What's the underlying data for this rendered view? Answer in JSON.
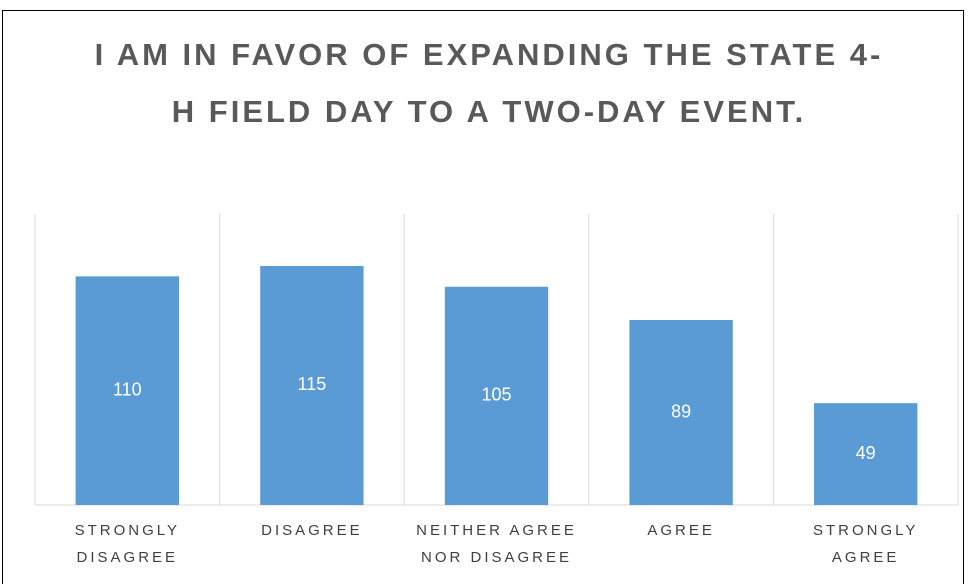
{
  "chart_data": {
    "type": "bar",
    "title": "I AM IN FAVOR OF EXPANDING THE STATE 4-H FIELD DAY TO A TWO-DAY EVENT.",
    "categories": [
      "STRONGLY DISAGREE",
      "DISAGREE",
      "NEITHER AGREE NOR DISAGREE",
      "AGREE",
      "STRONGLY AGREE"
    ],
    "values": [
      110,
      115,
      105,
      89,
      49
    ],
    "color": "#5b9bd5",
    "ylim": [
      0,
      140
    ]
  }
}
